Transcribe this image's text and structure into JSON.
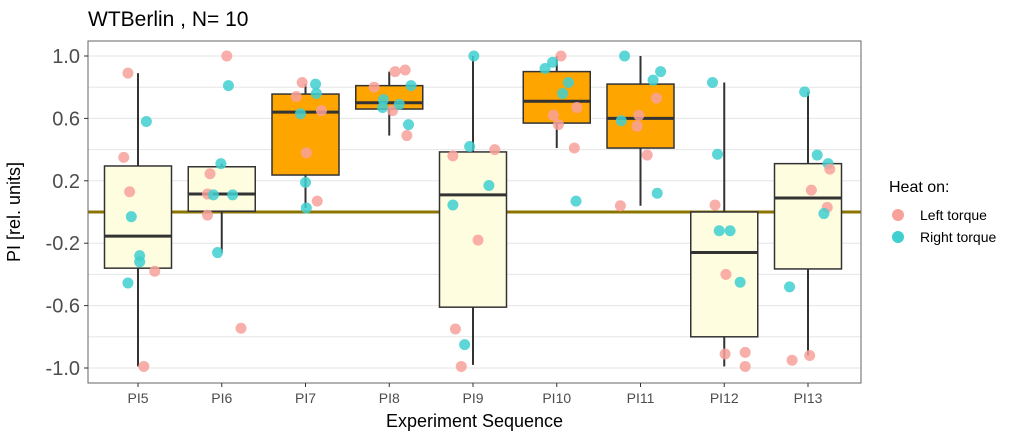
{
  "chart_data": {
    "type": "box",
    "title": "WTBerlin , N= 10",
    "xlabel": "Experiment Sequence",
    "ylabel": "PI [rel. units]",
    "ylim": [
      -1.05,
      1.07
    ],
    "yticks": [
      1.0,
      0.6,
      0.2,
      -0.2,
      -0.6,
      -1.0
    ],
    "ytick_labels": [
      "1.0",
      "0.6",
      "0.2",
      "-0.2",
      "-0.6",
      "-1.0"
    ],
    "reference_line": 0,
    "grid": true,
    "categories": [
      "PI5",
      "PI6",
      "PI7",
      "PI8",
      "PI9",
      "PI10",
      "PI11",
      "PI12",
      "PI13"
    ],
    "box_fill": [
      "#FFFDE0",
      "#FFFDE0",
      "#FFA500",
      "#FFA500",
      "#FFFDE0",
      "#FFA500",
      "#FFA500",
      "#FFFDE0",
      "#FFFDE0"
    ],
    "boxes": [
      {
        "whisker_low": -0.99,
        "q1": -0.36,
        "median": -0.155,
        "q3": 0.295,
        "whisker_high": 0.89
      },
      {
        "whisker_low": -0.26,
        "q1": 0.005,
        "median": 0.115,
        "q3": 0.29,
        "whisker_high": 0.31
      },
      {
        "whisker_low": 0.026,
        "q1": 0.237,
        "median": 0.64,
        "q3": 0.756,
        "whisker_high": 0.82
      },
      {
        "whisker_low": 0.49,
        "q1": 0.66,
        "median": 0.7,
        "q3": 0.81,
        "whisker_high": 0.9
      },
      {
        "whisker_low": -0.98,
        "q1": -0.61,
        "median": 0.11,
        "q3": 0.385,
        "whisker_high": 1.0
      },
      {
        "whisker_low": 0.41,
        "q1": 0.57,
        "median": 0.71,
        "q3": 0.9,
        "whisker_high": 1.0
      },
      {
        "whisker_low": 0.04,
        "q1": 0.41,
        "median": 0.6,
        "q3": 0.82,
        "whisker_high": 1.0
      },
      {
        "whisker_low": -0.99,
        "q1": -0.8,
        "median": -0.26,
        "q3": 0.0,
        "whisker_high": 0.83
      },
      {
        "whisker_low": -0.92,
        "q1": -0.365,
        "median": 0.09,
        "q3": 0.31,
        "whisker_high": 0.77
      }
    ],
    "points": [
      [
        {
          "group": "Left torque",
          "y": 0.89,
          "jitter": -0.12
        },
        {
          "group": "Right torque",
          "y": 0.58,
          "jitter": 0.1
        },
        {
          "group": "Left torque",
          "y": 0.35,
          "jitter": -0.17
        },
        {
          "group": "Left torque",
          "y": 0.13,
          "jitter": -0.1
        },
        {
          "group": "Right torque",
          "y": -0.03,
          "jitter": -0.08
        },
        {
          "group": "Right torque",
          "y": -0.28,
          "jitter": 0.02
        },
        {
          "group": "Right torque",
          "y": -0.32,
          "jitter": 0.02
        },
        {
          "group": "Left torque",
          "y": -0.38,
          "jitter": 0.2
        },
        {
          "group": "Right torque",
          "y": -0.455,
          "jitter": -0.12
        },
        {
          "group": "Left torque",
          "y": -0.99,
          "jitter": 0.07
        }
      ],
      [
        {
          "group": "Left torque",
          "y": 1.0,
          "jitter": 0.06
        },
        {
          "group": "Right torque",
          "y": 0.81,
          "jitter": 0.08
        },
        {
          "group": "Right torque",
          "y": 0.31,
          "jitter": -0.01
        },
        {
          "group": "Left torque",
          "y": 0.245,
          "jitter": -0.14
        },
        {
          "group": "Left torque",
          "y": 0.115,
          "jitter": -0.17
        },
        {
          "group": "Right torque",
          "y": 0.11,
          "jitter": -0.1
        },
        {
          "group": "Right torque",
          "y": 0.11,
          "jitter": 0.13
        },
        {
          "group": "Left torque",
          "y": -0.02,
          "jitter": -0.17
        },
        {
          "group": "Right torque",
          "y": -0.26,
          "jitter": -0.05
        },
        {
          "group": "Left torque",
          "y": -0.745,
          "jitter": 0.23
        }
      ],
      [
        {
          "group": "Left torque",
          "y": 0.83,
          "jitter": -0.04
        },
        {
          "group": "Right torque",
          "y": 0.82,
          "jitter": 0.12
        },
        {
          "group": "Right torque",
          "y": 0.76,
          "jitter": 0.13
        },
        {
          "group": "Left torque",
          "y": 0.74,
          "jitter": -0.11
        },
        {
          "group": "Right torque",
          "y": 0.63,
          "jitter": -0.06
        },
        {
          "group": "Left torque",
          "y": 0.65,
          "jitter": 0.19
        },
        {
          "group": "Left torque",
          "y": 0.38,
          "jitter": 0.01
        },
        {
          "group": "Right torque",
          "y": 0.19,
          "jitter": 0.0
        },
        {
          "group": "Left torque",
          "y": 0.07,
          "jitter": 0.14
        },
        {
          "group": "Right torque",
          "y": 0.026,
          "jitter": 0.01
        }
      ],
      [
        {
          "group": "Left torque",
          "y": 0.9,
          "jitter": 0.07
        },
        {
          "group": "Left torque",
          "y": 0.91,
          "jitter": 0.19
        },
        {
          "group": "Left torque",
          "y": 0.8,
          "jitter": -0.18
        },
        {
          "group": "Right torque",
          "y": 0.81,
          "jitter": 0.26
        },
        {
          "group": "Right torque",
          "y": 0.72,
          "jitter": -0.07
        },
        {
          "group": "Right torque",
          "y": 0.67,
          "jitter": -0.08
        },
        {
          "group": "Left torque",
          "y": 0.65,
          "jitter": 0.04
        },
        {
          "group": "Right torque",
          "y": 0.69,
          "jitter": 0.12
        },
        {
          "group": "Right torque",
          "y": 0.56,
          "jitter": 0.23
        },
        {
          "group": "Left torque",
          "y": 0.49,
          "jitter": 0.21
        }
      ],
      [
        {
          "group": "Right torque",
          "y": 1.0,
          "jitter": 0.01
        },
        {
          "group": "Right torque",
          "y": 0.42,
          "jitter": -0.04
        },
        {
          "group": "Left torque",
          "y": 0.4,
          "jitter": 0.26
        },
        {
          "group": "Left torque",
          "y": 0.36,
          "jitter": -0.24
        },
        {
          "group": "Right torque",
          "y": 0.17,
          "jitter": 0.19
        },
        {
          "group": "Right torque",
          "y": 0.045,
          "jitter": -0.24
        },
        {
          "group": "Left torque",
          "y": -0.18,
          "jitter": 0.06
        },
        {
          "group": "Left torque",
          "y": -0.75,
          "jitter": -0.21
        },
        {
          "group": "Right torque",
          "y": -0.85,
          "jitter": -0.1
        },
        {
          "group": "Left torque",
          "y": -0.99,
          "jitter": -0.14
        }
      ],
      [
        {
          "group": "Left torque",
          "y": 1.0,
          "jitter": 0.05
        },
        {
          "group": "Right torque",
          "y": 0.96,
          "jitter": -0.05
        },
        {
          "group": "Right torque",
          "y": 0.92,
          "jitter": -0.14
        },
        {
          "group": "Right torque",
          "y": 0.83,
          "jitter": 0.14
        },
        {
          "group": "Right torque",
          "y": 0.76,
          "jitter": 0.07
        },
        {
          "group": "Left torque",
          "y": 0.67,
          "jitter": 0.24
        },
        {
          "group": "Left torque",
          "y": 0.62,
          "jitter": -0.04
        },
        {
          "group": "Left torque",
          "y": 0.56,
          "jitter": 0.02
        },
        {
          "group": "Left torque",
          "y": 0.41,
          "jitter": 0.21
        },
        {
          "group": "Right torque",
          "y": 0.07,
          "jitter": 0.23
        }
      ],
      [
        {
          "group": "Right torque",
          "y": 1.0,
          "jitter": -0.19
        },
        {
          "group": "Right torque",
          "y": 0.9,
          "jitter": 0.24
        },
        {
          "group": "Right torque",
          "y": 0.845,
          "jitter": 0.15
        },
        {
          "group": "Left torque",
          "y": 0.73,
          "jitter": 0.19
        },
        {
          "group": "Left torque",
          "y": 0.62,
          "jitter": -0.02
        },
        {
          "group": "Right torque",
          "y": 0.585,
          "jitter": -0.23
        },
        {
          "group": "Left torque",
          "y": 0.55,
          "jitter": -0.04
        },
        {
          "group": "Left torque",
          "y": 0.365,
          "jitter": 0.08
        },
        {
          "group": "Right torque",
          "y": 0.12,
          "jitter": 0.2
        },
        {
          "group": "Left torque",
          "y": 0.04,
          "jitter": -0.24
        }
      ],
      [
        {
          "group": "Right torque",
          "y": 0.83,
          "jitter": -0.14
        },
        {
          "group": "Right torque",
          "y": 0.37,
          "jitter": -0.08
        },
        {
          "group": "Left torque",
          "y": 0.045,
          "jitter": -0.11
        },
        {
          "group": "Right torque",
          "y": -0.12,
          "jitter": -0.06
        },
        {
          "group": "Right torque",
          "y": -0.12,
          "jitter": 0.07
        },
        {
          "group": "Left torque",
          "y": -0.4,
          "jitter": 0.02
        },
        {
          "group": "Right torque",
          "y": -0.45,
          "jitter": 0.19
        },
        {
          "group": "Left torque",
          "y": -0.91,
          "jitter": 0.01
        },
        {
          "group": "Left torque",
          "y": -0.9,
          "jitter": 0.25
        },
        {
          "group": "Left torque",
          "y": -0.99,
          "jitter": 0.25
        }
      ],
      [
        {
          "group": "Right torque",
          "y": 0.77,
          "jitter": -0.04
        },
        {
          "group": "Right torque",
          "y": 0.365,
          "jitter": 0.11
        },
        {
          "group": "Right torque",
          "y": 0.31,
          "jitter": 0.24
        },
        {
          "group": "Left torque",
          "y": 0.275,
          "jitter": 0.26
        },
        {
          "group": "Left torque",
          "y": 0.14,
          "jitter": 0.04
        },
        {
          "group": "Left torque",
          "y": 0.03,
          "jitter": 0.23
        },
        {
          "group": "Right torque",
          "y": -0.01,
          "jitter": 0.19
        },
        {
          "group": "Right torque",
          "y": -0.48,
          "jitter": -0.22
        },
        {
          "group": "Left torque",
          "y": -0.95,
          "jitter": -0.19
        },
        {
          "group": "Left torque",
          "y": -0.92,
          "jitter": 0.02
        }
      ]
    ],
    "legend": {
      "title": "Heat on:",
      "position": "right",
      "entries": [
        {
          "label": "Left torque",
          "color": "#F8A19A"
        },
        {
          "label": "Right torque",
          "color": "#3FCFCF"
        }
      ]
    }
  },
  "colors": {
    "reference_line": "#8B7500",
    "box_outline": "#333333",
    "grid": "#E5E5E5",
    "panel_border": "#666666"
  }
}
